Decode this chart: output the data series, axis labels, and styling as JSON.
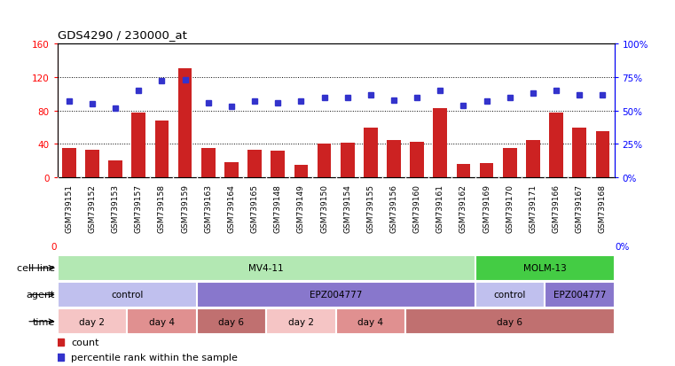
{
  "title": "GDS4290 / 230000_at",
  "samples": [
    "GSM739151",
    "GSM739152",
    "GSM739153",
    "GSM739157",
    "GSM739158",
    "GSM739159",
    "GSM739163",
    "GSM739164",
    "GSM739165",
    "GSM739148",
    "GSM739149",
    "GSM739150",
    "GSM739154",
    "GSM739155",
    "GSM739156",
    "GSM739160",
    "GSM739161",
    "GSM739162",
    "GSM739169",
    "GSM739170",
    "GSM739171",
    "GSM739166",
    "GSM739167",
    "GSM739168"
  ],
  "counts": [
    35,
    33,
    20,
    78,
    68,
    130,
    35,
    18,
    33,
    32,
    15,
    40,
    41,
    60,
    45,
    43,
    83,
    16,
    17,
    35,
    45,
    78,
    60,
    55
  ],
  "percentile": [
    57,
    55,
    52,
    65,
    72,
    73,
    56,
    53,
    57,
    56,
    57,
    60,
    60,
    62,
    58,
    60,
    65,
    54,
    57,
    60,
    63,
    65,
    62,
    62
  ],
  "bar_color": "#cc2222",
  "dot_color": "#3333cc",
  "ylim_left": [
    0,
    160
  ],
  "ylim_right": [
    0,
    100
  ],
  "yticks_left": [
    0,
    40,
    80,
    120,
    160
  ],
  "yticks_right": [
    0,
    25,
    50,
    75,
    100
  ],
  "cell_line_row": {
    "label": "cell line",
    "segments": [
      {
        "text": "MV4-11",
        "start": 0,
        "end": 18,
        "color": "#b3e8b3"
      },
      {
        "text": "MOLM-13",
        "start": 18,
        "end": 24,
        "color": "#44cc44"
      }
    ]
  },
  "agent_row": {
    "label": "agent",
    "segments": [
      {
        "text": "control",
        "start": 0,
        "end": 6,
        "color": "#c0c0ee"
      },
      {
        "text": "EPZ004777",
        "start": 6,
        "end": 18,
        "color": "#8877cc"
      },
      {
        "text": "control",
        "start": 18,
        "end": 21,
        "color": "#c0c0ee"
      },
      {
        "text": "EPZ004777",
        "start": 21,
        "end": 24,
        "color": "#8877cc"
      }
    ]
  },
  "time_row": {
    "label": "time",
    "segments": [
      {
        "text": "day 2",
        "start": 0,
        "end": 3,
        "color": "#f5c5c5"
      },
      {
        "text": "day 4",
        "start": 3,
        "end": 6,
        "color": "#e09090"
      },
      {
        "text": "day 6",
        "start": 6,
        "end": 9,
        "color": "#c07070"
      },
      {
        "text": "day 2",
        "start": 9,
        "end": 12,
        "color": "#f5c5c5"
      },
      {
        "text": "day 4",
        "start": 12,
        "end": 15,
        "color": "#e09090"
      },
      {
        "text": "day 6",
        "start": 15,
        "end": 24,
        "color": "#c07070"
      }
    ]
  },
  "legend_items": [
    {
      "color": "#cc2222",
      "label": "count",
      "marker": "s"
    },
    {
      "color": "#3333cc",
      "label": "percentile rank within the sample",
      "marker": "s"
    }
  ],
  "xtick_bg_color": "#d8d8d8",
  "background_color": "#ffffff"
}
